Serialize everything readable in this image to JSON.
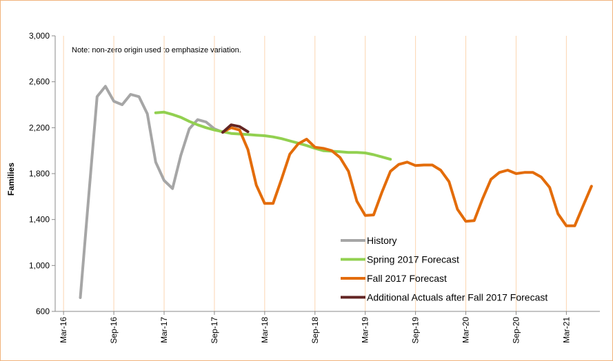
{
  "chart_data": {
    "type": "line",
    "annotation": "Note: non-zero origin used to emphasize variation.",
    "y_label": "Families",
    "categories": [
      null,
      "Mar-16",
      null,
      null,
      null,
      null,
      null,
      "Sep-16",
      null,
      null,
      null,
      null,
      null,
      "Mar-17",
      null,
      null,
      null,
      null,
      null,
      "Sep-17",
      null,
      null,
      null,
      null,
      null,
      "Mar-18",
      null,
      null,
      null,
      null,
      null,
      "Sep-18",
      null,
      null,
      null,
      null,
      null,
      "Mar-19",
      null,
      null,
      null,
      null,
      null,
      "Sep-19",
      null,
      null,
      null,
      null,
      null,
      "Mar-20",
      null,
      null,
      null,
      null,
      null,
      "Sep-20",
      null,
      null,
      null,
      null,
      null,
      "Mar-21",
      null,
      null,
      null,
      null
    ],
    "series": [
      {
        "name": "History",
        "color": "#a6a6a6",
        "values": [
          null,
          null,
          null,
          720,
          1600,
          2470,
          2560,
          2430,
          2400,
          2490,
          2470,
          2320,
          1900,
          1740,
          1670,
          1960,
          2190,
          2270,
          2250,
          2190,
          2160,
          null,
          null,
          null,
          null,
          null,
          null,
          null,
          null,
          null,
          null,
          null,
          null,
          null,
          null,
          null,
          null,
          null,
          null,
          null,
          null,
          null,
          null,
          null,
          null,
          null,
          null,
          null,
          null,
          null,
          null,
          null,
          null,
          null,
          null,
          null,
          null,
          null,
          null,
          null,
          null,
          null,
          null,
          null,
          null,
          null
        ]
      },
      {
        "name": "Spring 2017 Forecast",
        "color": "#92d050",
        "values": [
          null,
          null,
          null,
          null,
          null,
          null,
          null,
          null,
          null,
          null,
          null,
          null,
          2330,
          2335,
          2315,
          2290,
          2255,
          2225,
          2200,
          2180,
          2165,
          2150,
          2145,
          2140,
          2135,
          2130,
          2120,
          2105,
          2085,
          2065,
          2045,
          2020,
          2000,
          1995,
          1990,
          1985,
          1985,
          1980,
          1965,
          1945,
          1925,
          null,
          null,
          null,
          null,
          null,
          null,
          null,
          null,
          null,
          null,
          null,
          null,
          null,
          null,
          null,
          null,
          null,
          null,
          null,
          null,
          null,
          null,
          null,
          null,
          null
        ]
      },
      {
        "name": "Fall 2017 Forecast",
        "color": "#e36c0a",
        "values": [
          null,
          null,
          null,
          null,
          null,
          null,
          null,
          null,
          null,
          null,
          null,
          null,
          null,
          null,
          null,
          null,
          null,
          null,
          null,
          null,
          2160,
          2200,
          2180,
          2010,
          1700,
          1540,
          1540,
          1750,
          1970,
          2060,
          2100,
          2030,
          2020,
          2000,
          1940,
          1820,
          1560,
          1435,
          1440,
          1640,
          1820,
          1880,
          1900,
          1870,
          1875,
          1875,
          1830,
          1730,
          1490,
          1385,
          1390,
          1580,
          1750,
          1810,
          1830,
          1800,
          1810,
          1810,
          1770,
          1680,
          1450,
          1345,
          1345,
          1520,
          1690,
          null
        ]
      },
      {
        "name": "Additional Actuals after Fall 2017 Forecast",
        "color": "#632523",
        "values": [
          null,
          null,
          null,
          null,
          null,
          null,
          null,
          null,
          null,
          null,
          null,
          null,
          null,
          null,
          null,
          null,
          null,
          null,
          null,
          null,
          2160,
          2225,
          2210,
          2165,
          null,
          null,
          null,
          null,
          null,
          null,
          null,
          null,
          null,
          null,
          null,
          null,
          null,
          null,
          null,
          null,
          null,
          null,
          null,
          null,
          null,
          null,
          null,
          null,
          null,
          null,
          null,
          null,
          null,
          null,
          null,
          null,
          null,
          null,
          null,
          null,
          null,
          null,
          null,
          null,
          null,
          null
        ]
      }
    ],
    "ylim": [
      600,
      3000
    ],
    "yticks": [
      {
        "value": 600,
        "label": "600"
      },
      {
        "value": 1000,
        "label": "1,000"
      },
      {
        "value": 1400,
        "label": "1,400"
      },
      {
        "value": 1800,
        "label": "1,800"
      },
      {
        "value": 2200,
        "label": "2,200"
      },
      {
        "value": 2600,
        "label": "2,600"
      },
      {
        "value": 3000,
        "label": "3,000"
      }
    ],
    "grid": true
  }
}
